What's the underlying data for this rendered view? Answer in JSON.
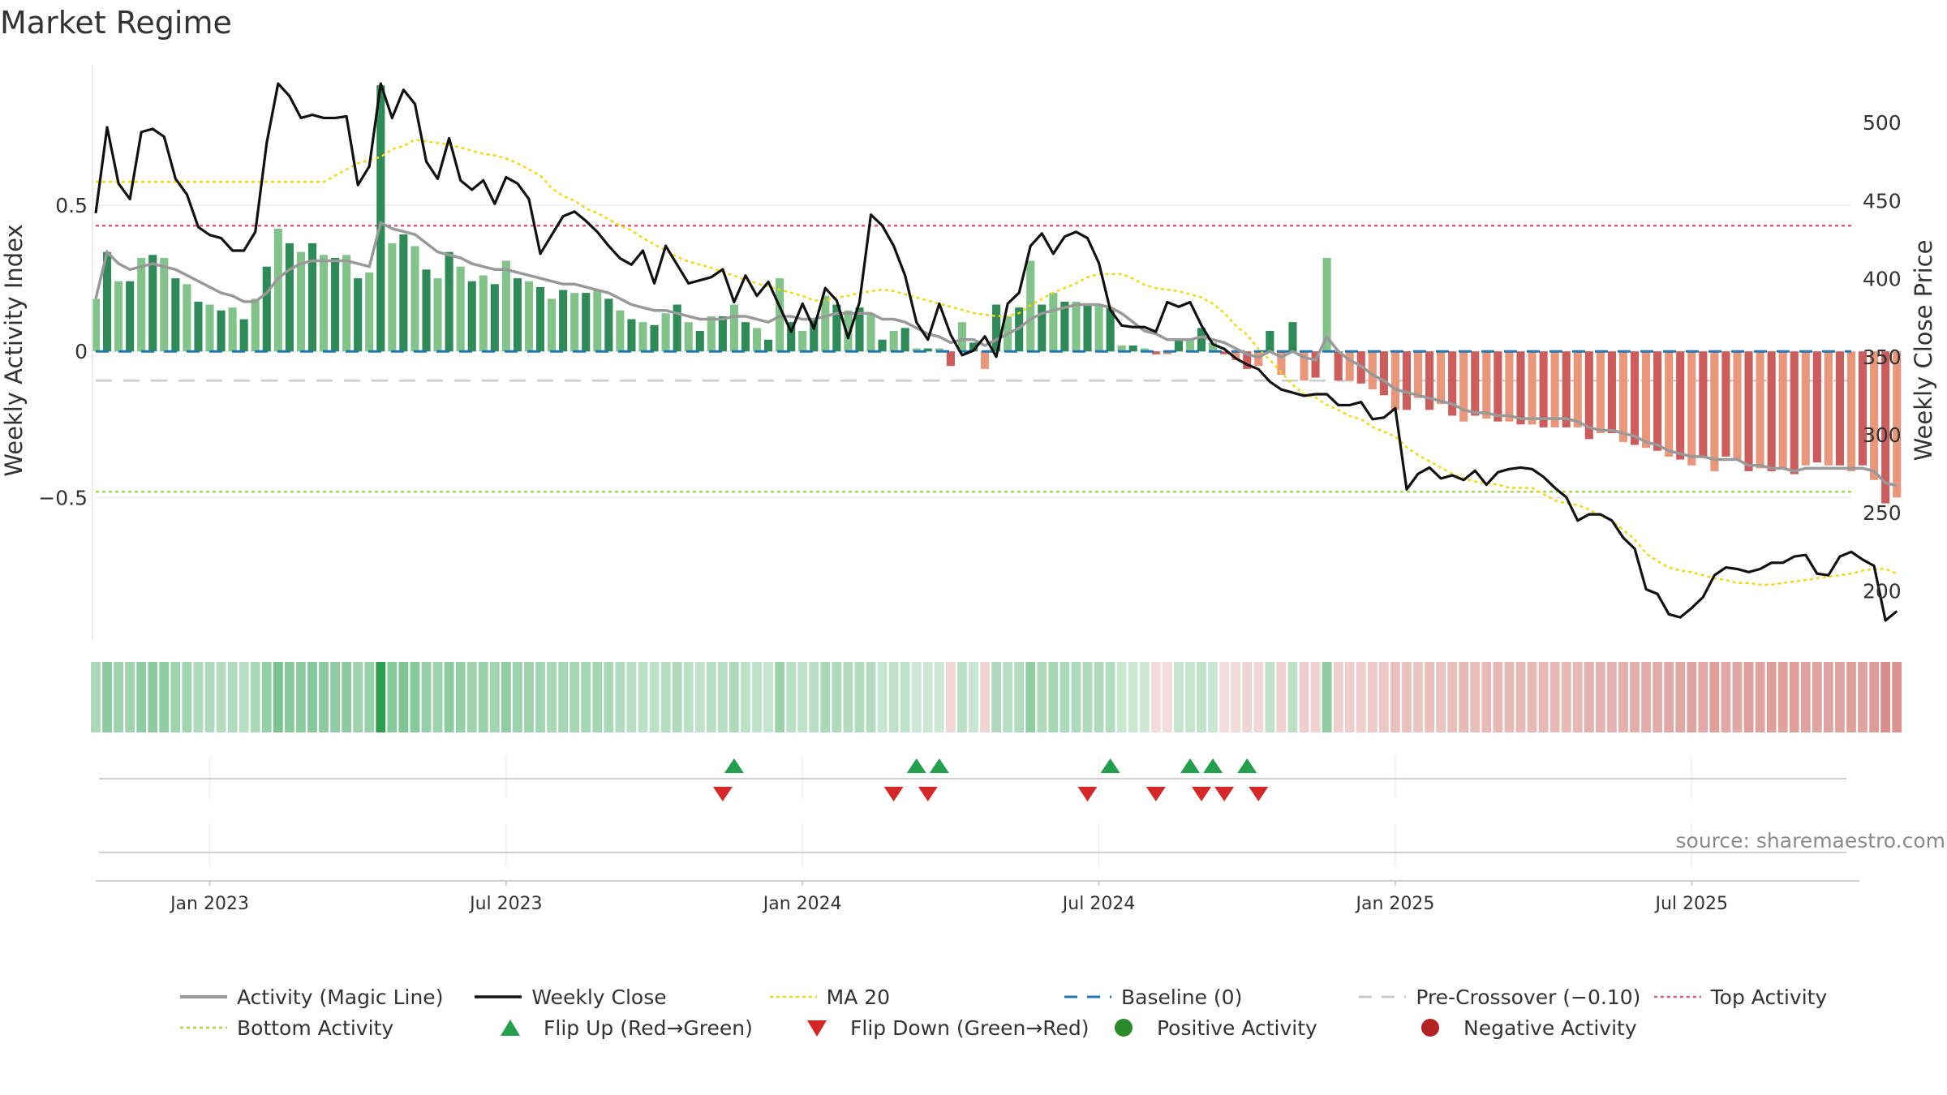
{
  "title": "Market Regime",
  "source": "source: sharemaestro.com",
  "chart_data": {
    "type": "bar",
    "title": "Market Regime",
    "x_tick_labels": [
      "Jan 2023",
      "Jul 2023",
      "Jan 2024",
      "Jul 2024",
      "Jan 2025",
      "Jul 2025"
    ],
    "y_left": {
      "label": "Weekly Activity Index",
      "ticks": [
        0.5,
        0,
        -0.5
      ],
      "tick_labels": [
        "0.5",
        "0",
        "−0.5"
      ],
      "range": [
        -0.99,
        0.98
      ]
    },
    "y_right": {
      "label": "Weekly Close Price",
      "ticks": [
        500,
        450,
        400,
        350,
        300,
        250,
        200
      ],
      "range": [
        168,
        537
      ]
    },
    "x_range_weeks": [
      0,
      154
    ],
    "week_index_note": "week 0 = 2022-10-24, weekly steps",
    "reference_lines": {
      "top_activity": 0.43,
      "bottom_activity": -0.48,
      "pre_crossover": -0.1,
      "baseline": 0
    },
    "activity_bars": [
      0.18,
      0.34,
      0.24,
      0.24,
      0.32,
      0.33,
      0.32,
      0.25,
      0.23,
      0.17,
      0.16,
      0.14,
      0.15,
      0.11,
      0.18,
      0.29,
      0.42,
      0.37,
      0.34,
      0.37,
      0.33,
      0.32,
      0.33,
      0.25,
      0.27,
      0.91,
      0.37,
      0.4,
      0.36,
      0.28,
      0.25,
      0.34,
      0.29,
      0.24,
      0.26,
      0.23,
      0.31,
      0.25,
      0.24,
      0.22,
      0.18,
      0.21,
      0.2,
      0.2,
      0.21,
      0.18,
      0.14,
      0.11,
      0.1,
      0.09,
      0.13,
      0.16,
      0.1,
      0.07,
      0.12,
      0.12,
      0.16,
      0.1,
      0.08,
      0.04,
      0.25,
      0.1,
      0.07,
      0.11,
      0.19,
      0.16,
      0.14,
      0.15,
      0.13,
      0.04,
      0.07,
      0.08,
      0.01,
      0.01,
      0.01,
      -0.05,
      0.1,
      0.03,
      -0.06,
      0.16,
      0.12,
      0.15,
      0.31,
      0.16,
      0.2,
      0.17,
      0.17,
      0.16,
      0.16,
      0.15,
      0.02,
      0.02,
      0.01,
      -0.01,
      -0.01,
      0.04,
      0.04,
      0.08,
      0.03,
      -0.01,
      -0.03,
      -0.06,
      -0.05,
      0.07,
      -0.08,
      0.1,
      -0.1,
      -0.09,
      0.32,
      -0.1,
      -0.1,
      -0.11,
      -0.13,
      -0.15,
      -0.2,
      -0.2,
      -0.16,
      -0.2,
      -0.18,
      -0.22,
      -0.24,
      -0.22,
      -0.23,
      -0.24,
      -0.24,
      -0.25,
      -0.25,
      -0.26,
      -0.26,
      -0.26,
      -0.26,
      -0.3,
      -0.28,
      -0.28,
      -0.31,
      -0.32,
      -0.33,
      -0.34,
      -0.36,
      -0.37,
      -0.39,
      -0.36,
      -0.41,
      -0.36,
      -0.37,
      -0.41,
      -0.4,
      -0.41,
      -0.4,
      -0.42,
      -0.39,
      -0.38,
      -0.39,
      -0.39,
      -0.41,
      -0.39,
      -0.44,
      -0.52,
      -0.5
    ],
    "magic_line": [
      0.18,
      0.34,
      0.3,
      0.28,
      0.29,
      0.3,
      0.29,
      0.28,
      0.26,
      0.24,
      0.22,
      0.2,
      0.19,
      0.17,
      0.17,
      0.2,
      0.25,
      0.28,
      0.3,
      0.31,
      0.31,
      0.31,
      0.31,
      0.3,
      0.29,
      0.44,
      0.42,
      0.41,
      0.4,
      0.37,
      0.34,
      0.33,
      0.32,
      0.3,
      0.29,
      0.28,
      0.28,
      0.27,
      0.26,
      0.25,
      0.24,
      0.23,
      0.23,
      0.22,
      0.21,
      0.2,
      0.18,
      0.16,
      0.15,
      0.14,
      0.14,
      0.13,
      0.12,
      0.11,
      0.11,
      0.11,
      0.12,
      0.12,
      0.11,
      0.1,
      0.12,
      0.12,
      0.11,
      0.11,
      0.12,
      0.13,
      0.13,
      0.13,
      0.13,
      0.11,
      0.11,
      0.1,
      0.08,
      0.06,
      0.05,
      0.03,
      0.04,
      0.04,
      0.02,
      0.04,
      0.06,
      0.08,
      0.11,
      0.13,
      0.14,
      0.15,
      0.16,
      0.16,
      0.16,
      0.15,
      0.13,
      0.1,
      0.07,
      0.06,
      0.04,
      0.04,
      0.04,
      0.05,
      0.04,
      0.03,
      0.01,
      -0.01,
      -0.02,
      0.0,
      -0.02,
      0.0,
      -0.02,
      -0.03,
      0.05,
      0.0,
      -0.03,
      -0.05,
      -0.08,
      -0.1,
      -0.13,
      -0.14,
      -0.15,
      -0.16,
      -0.17,
      -0.18,
      -0.2,
      -0.21,
      -0.21,
      -0.22,
      -0.22,
      -0.23,
      -0.23,
      -0.23,
      -0.23,
      -0.23,
      -0.24,
      -0.26,
      -0.27,
      -0.27,
      -0.28,
      -0.29,
      -0.31,
      -0.32,
      -0.34,
      -0.35,
      -0.36,
      -0.36,
      -0.37,
      -0.37,
      -0.37,
      -0.39,
      -0.39,
      -0.4,
      -0.4,
      -0.41,
      -0.4,
      -0.4,
      -0.4,
      -0.4,
      -0.4,
      -0.4,
      -0.41,
      -0.45,
      -0.46
    ],
    "weekly_close": [
      442,
      497,
      461,
      451,
      494,
      496,
      491,
      464,
      454,
      433,
      428,
      426,
      418,
      418,
      430,
      487,
      525,
      517,
      503,
      505,
      503,
      503,
      504,
      460,
      472,
      525,
      503,
      521,
      512,
      475,
      464,
      490,
      463,
      457,
      463,
      448,
      465,
      461,
      451,
      416,
      428,
      440,
      443,
      437,
      430,
      421,
      413,
      409,
      418,
      397,
      421,
      409,
      397,
      399,
      401,
      406,
      385,
      402,
      389,
      398,
      382,
      366,
      384,
      368,
      394,
      386,
      362,
      385,
      441,
      434,
      421,
      402,
      372,
      361,
      384,
      364,
      351,
      354,
      363,
      350,
      384,
      391,
      421,
      429,
      416,
      427,
      430,
      426,
      410,
      380,
      370,
      369,
      369,
      366,
      385,
      382,
      385,
      370,
      358,
      355,
      349,
      345,
      342,
      334,
      329,
      327,
      325,
      326,
      326,
      319,
      319,
      321,
      310,
      311,
      317,
      265,
      275,
      279,
      272,
      274,
      271,
      277,
      268,
      276,
      278,
      279,
      278,
      273,
      266,
      260,
      245,
      249,
      249,
      245,
      234,
      227,
      201,
      198,
      185,
      183,
      189,
      196,
      210,
      215,
      214,
      212,
      214,
      218,
      218,
      222,
      223,
      211,
      210,
      222,
      225,
      220,
      216,
      181,
      187
    ],
    "ma20": [
      462,
      462,
      462,
      462,
      462,
      462,
      462,
      462,
      462,
      462,
      462,
      462,
      462,
      462,
      462,
      462,
      462,
      462,
      462,
      462,
      462,
      466,
      470,
      474,
      476,
      478,
      483,
      485,
      489,
      488,
      487,
      486,
      484,
      482,
      480,
      479,
      477,
      474,
      470,
      466,
      458,
      453,
      450,
      445,
      442,
      438,
      434,
      431,
      426,
      422,
      418,
      414,
      411,
      409,
      407,
      404,
      402,
      399,
      397,
      395,
      393,
      391,
      389,
      386,
      386,
      388,
      389,
      391,
      392,
      393,
      392,
      390,
      388,
      386,
      384,
      382,
      380,
      378,
      377,
      376,
      376,
      378,
      383,
      387,
      391,
      394,
      397,
      401,
      403,
      403,
      403,
      400,
      396,
      394,
      393,
      392,
      390,
      388,
      384,
      378,
      370,
      364,
      355,
      348,
      340,
      332,
      326,
      324,
      319,
      316,
      312,
      310,
      305,
      302,
      299,
      292,
      287,
      283,
      279,
      275,
      272,
      270,
      269,
      268,
      266,
      266,
      266,
      262,
      258,
      256,
      255,
      252,
      248,
      245,
      239,
      233,
      224,
      219,
      215,
      213,
      212,
      210,
      208,
      207,
      205,
      205,
      204,
      204,
      205,
      206,
      207,
      208,
      209,
      210,
      211,
      213,
      214,
      214,
      211
    ],
    "flip_up_weeks": [
      56,
      72,
      74,
      89,
      96,
      98,
      101
    ],
    "flip_down_weeks": [
      55,
      70,
      73,
      87,
      93,
      97,
      99,
      102
    ],
    "regime_strip_note": "one heat cell per week, colour follows activity_bars sign and strength",
    "legend": {
      "row1": [
        "Activity (Magic Line)",
        "Weekly Close",
        "MA 20",
        "Baseline (0)",
        "Pre-Crossover (−0.10)",
        "Top Activity"
      ],
      "row2": [
        "Bottom Activity",
        "Flip Up (Red→Green)",
        "Flip Down (Green→Red)",
        "Positive Activity",
        "Negative Activity"
      ]
    }
  },
  "colors": {
    "pos_strong": "#2e8b57",
    "pos_light": "#82c389",
    "neg_strong": "#cd5c5c",
    "neg_light": "#e9967a",
    "magic_line": "#999999",
    "close": "#111111",
    "ma20": "#f5d70f",
    "baseline": "#1f77b4",
    "pre_crossover": "#cccccc",
    "top_activity": "#e35d78",
    "bottom_activity": "#a6d854",
    "flip_up": "#22a04b",
    "flip_down": "#d62728",
    "positive_dot": "#2b8a2b",
    "negative_dot": "#b22222"
  }
}
